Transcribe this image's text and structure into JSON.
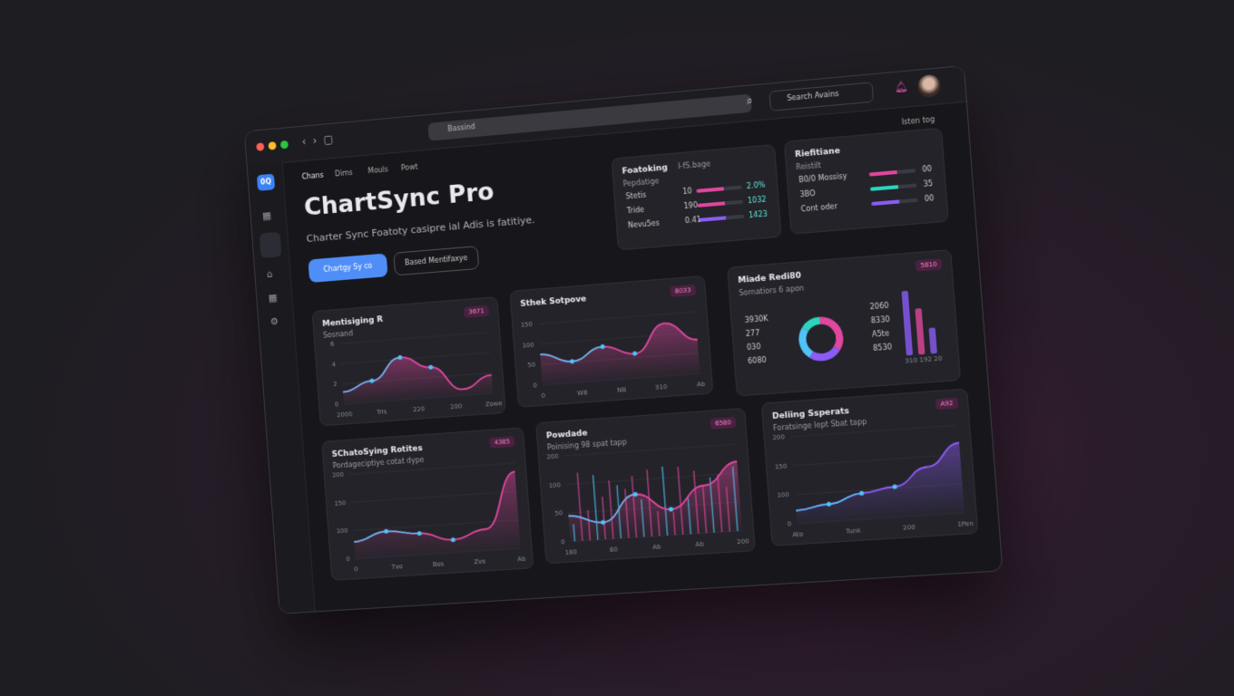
{
  "browser": {
    "address": "Bassind",
    "search": "Search Avains"
  },
  "top_right": "Isten tog",
  "logo": "0Q",
  "nav": [
    "Chans",
    "Dims",
    "Mouls",
    "Powt"
  ],
  "hero": {
    "title": "ChartSync Pro",
    "subtitle": "Charter Sync Foatoty casipre ial Adis is fatitiye.",
    "primary_button": "Chartgy Sy co",
    "secondary_button": "Based Mentifaxye"
  },
  "stats": [
    {
      "title": "Foatoking",
      "note": "I-fS.bage",
      "subtitle": "Pepdatige",
      "rows": [
        [
          "Stetis",
          "10",
          "2.0%"
        ],
        [
          "Tride",
          "190",
          "1032"
        ],
        [
          "Nevu5es",
          "0.41",
          "1423"
        ]
      ]
    },
    {
      "title": "Riefitiane",
      "subtitle": "Reistilt",
      "rows": [
        [
          "B0/0 Mossisy",
          "00"
        ],
        [
          "3BO",
          "35"
        ],
        [
          "Cont oder",
          "00"
        ]
      ]
    }
  ],
  "donut": {
    "title": "Miade Redi80",
    "subtitle": "Sornatiors 6 apon",
    "badge": "5810",
    "legend": [
      "3930K",
      "277",
      "030",
      "6080"
    ],
    "right": [
      "2060",
      "8330",
      "A5te",
      "8530"
    ],
    "bar_labels": "310 192 20"
  },
  "cards": [
    {
      "title": "Mentisiging R",
      "subtitle": "Sosnand",
      "badge": "3671",
      "yticks": [
        "6",
        "4",
        "2",
        "0"
      ],
      "xticks": [
        "2000",
        "Tris",
        "220",
        "200",
        "Zowe"
      ]
    },
    {
      "title": "Sthek Sotpove",
      "subtitle": "",
      "badge": "8033",
      "yticks": [
        "150",
        "100",
        "50",
        "0"
      ],
      "xticks": [
        "0",
        "W8",
        "NB",
        "310",
        "Ab"
      ]
    },
    {
      "title": "SChatoSying Rotites",
      "subtitle": "Pordageciptiye cotat dype",
      "badge": "4385",
      "yticks": [
        "200",
        "150",
        "100",
        "0"
      ],
      "xticks": [
        "0",
        "Tvo",
        "Bos",
        "Zvo",
        "Ab"
      ]
    },
    {
      "title": "Powdade",
      "subtitle": "Poinising 98 spat tapp",
      "badge": "6580",
      "yticks": [
        "200",
        "100",
        "50",
        "0"
      ],
      "xticks": [
        "180",
        "80",
        "Ab",
        "Ab",
        "200"
      ]
    },
    {
      "title": "Deliing Ssperats",
      "subtitle": "Foratsinge lept Sbat tapp",
      "badge": "A92",
      "yticks": [
        "200",
        "150",
        "100",
        "0"
      ],
      "xticks": [
        "Ato",
        "Tunk",
        "200",
        "1Pen"
      ]
    }
  ]
}
